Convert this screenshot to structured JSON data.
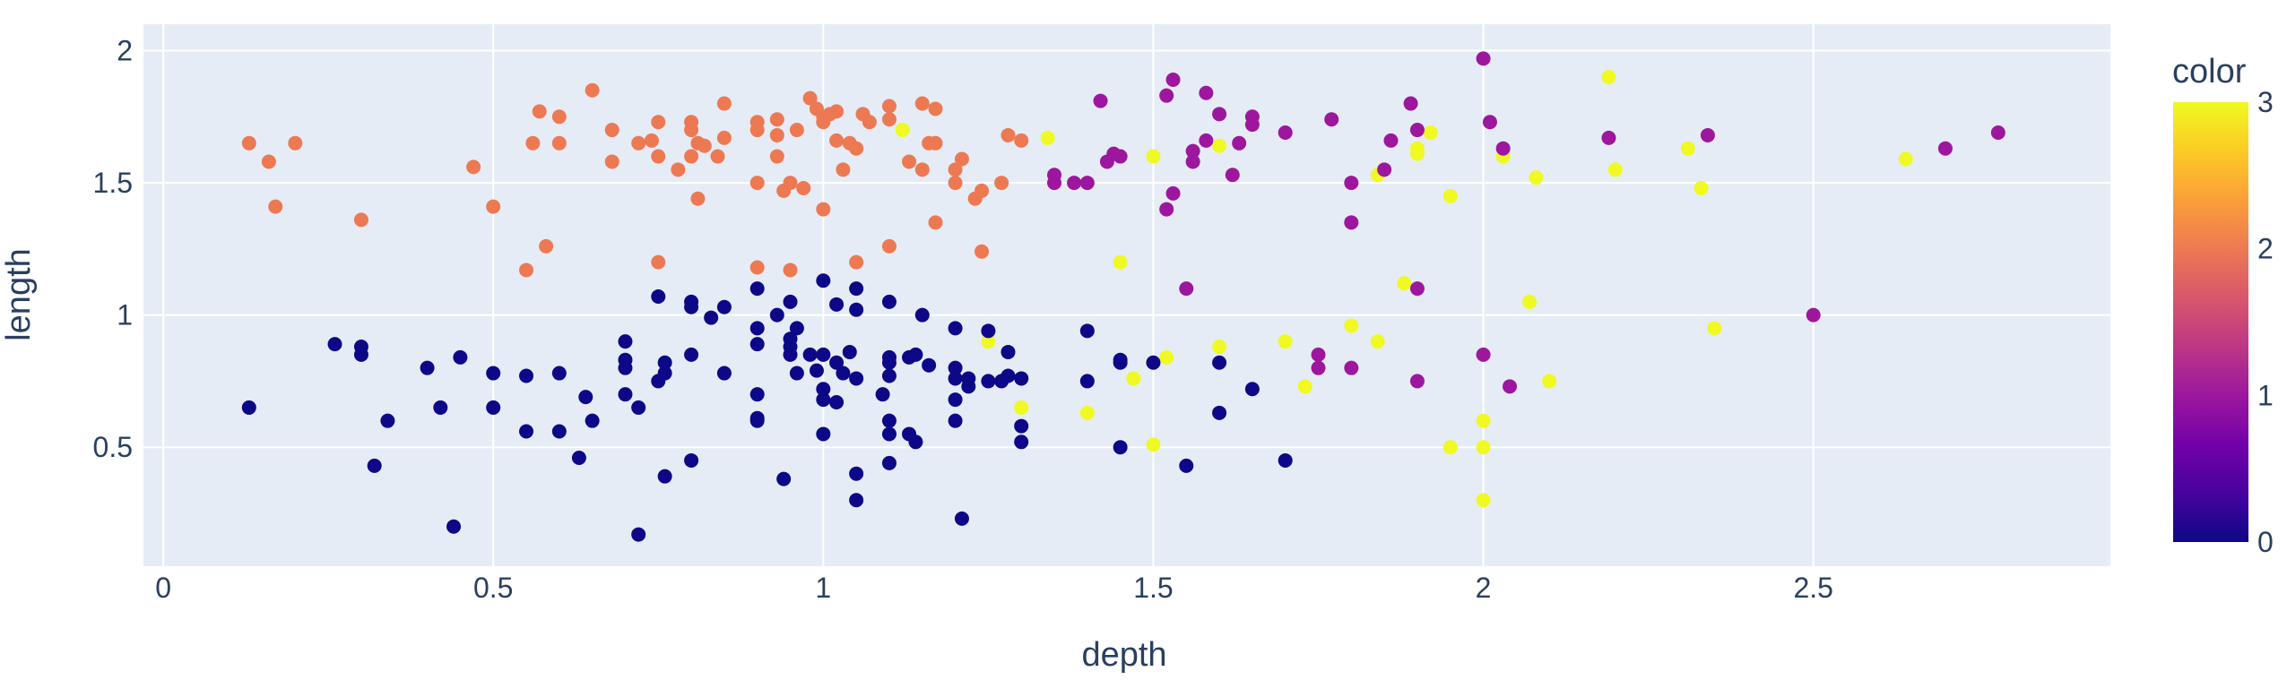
{
  "chart_data": {
    "type": "scatter",
    "xlabel": "depth",
    "ylabel": "length",
    "colorbar_title": "color",
    "xlim": [
      -0.03,
      2.95
    ],
    "ylim": [
      0.05,
      2.1
    ],
    "x_ticks": [
      0,
      0.5,
      1,
      1.5,
      2,
      2.5
    ],
    "x_tick_labels": [
      "0",
      "0.5",
      "1",
      "1.5",
      "2",
      "2.5"
    ],
    "y_ticks": [
      0.5,
      1,
      1.5,
      2
    ],
    "y_tick_labels": [
      "0.5",
      "1",
      "1.5",
      "2"
    ],
    "color_range": [
      0,
      3
    ],
    "colorbar_ticks": [
      0,
      1,
      2,
      3
    ],
    "colorbar_tick_labels": [
      "0",
      "1",
      "2",
      "3"
    ],
    "colorscale": [
      "#0d0887",
      "#46039f",
      "#7201a8",
      "#9c179e",
      "#bd3786",
      "#d8576b",
      "#ed7953",
      "#fb9f3a",
      "#fdca26",
      "#f0f921"
    ],
    "background": "#e5ecf6",
    "grid": true,
    "points": [
      [
        0.13,
        1.65,
        2
      ],
      [
        0.16,
        1.58,
        2
      ],
      [
        0.17,
        1.41,
        2
      ],
      [
        0.2,
        1.65,
        2
      ],
      [
        0.3,
        1.36,
        2
      ],
      [
        0.47,
        1.56,
        2
      ],
      [
        0.5,
        1.41,
        2
      ],
      [
        0.55,
        1.17,
        2
      ],
      [
        0.56,
        1.65,
        2
      ],
      [
        0.57,
        1.77,
        2
      ],
      [
        0.58,
        1.26,
        2
      ],
      [
        0.6,
        1.75,
        2
      ],
      [
        0.6,
        1.65,
        2
      ],
      [
        0.65,
        1.85,
        2
      ],
      [
        0.68,
        1.7,
        2
      ],
      [
        0.68,
        1.58,
        2
      ],
      [
        0.72,
        1.65,
        2
      ],
      [
        0.74,
        1.66,
        2
      ],
      [
        0.75,
        1.73,
        2
      ],
      [
        0.75,
        1.6,
        2
      ],
      [
        0.75,
        1.2,
        2
      ],
      [
        0.78,
        1.55,
        2
      ],
      [
        0.8,
        1.73,
        2
      ],
      [
        0.8,
        1.7,
        2
      ],
      [
        0.8,
        1.6,
        2
      ],
      [
        0.81,
        1.65,
        2
      ],
      [
        0.81,
        1.44,
        2
      ],
      [
        0.82,
        1.64,
        2
      ],
      [
        0.84,
        1.6,
        2
      ],
      [
        0.85,
        1.8,
        2
      ],
      [
        0.85,
        1.67,
        2
      ],
      [
        0.9,
        1.73,
        2
      ],
      [
        0.9,
        1.7,
        2
      ],
      [
        0.9,
        1.5,
        2
      ],
      [
        0.9,
        1.18,
        2
      ],
      [
        0.93,
        1.74,
        2
      ],
      [
        0.93,
        1.6,
        2
      ],
      [
        0.93,
        1.68,
        2
      ],
      [
        0.94,
        1.47,
        2
      ],
      [
        0.95,
        1.5,
        2
      ],
      [
        0.95,
        1.17,
        2
      ],
      [
        0.96,
        1.7,
        2
      ],
      [
        0.97,
        1.48,
        2
      ],
      [
        0.98,
        1.82,
        2
      ],
      [
        0.99,
        1.78,
        2
      ],
      [
        1.0,
        1.75,
        2
      ],
      [
        1.0,
        1.73,
        2
      ],
      [
        1.0,
        1.4,
        2
      ],
      [
        1.01,
        1.76,
        2
      ],
      [
        1.02,
        1.77,
        2
      ],
      [
        1.02,
        1.66,
        2
      ],
      [
        1.03,
        1.55,
        2
      ],
      [
        1.04,
        1.65,
        2
      ],
      [
        1.05,
        1.63,
        2
      ],
      [
        1.05,
        1.2,
        2
      ],
      [
        1.06,
        1.76,
        2
      ],
      [
        1.07,
        1.73,
        2
      ],
      [
        1.1,
        1.79,
        2
      ],
      [
        1.1,
        1.74,
        2
      ],
      [
        1.1,
        1.26,
        2
      ],
      [
        1.13,
        1.58,
        2
      ],
      [
        1.15,
        1.8,
        2
      ],
      [
        1.15,
        1.55,
        2
      ],
      [
        1.16,
        1.65,
        2
      ],
      [
        1.17,
        1.78,
        2
      ],
      [
        1.17,
        1.65,
        2
      ],
      [
        1.17,
        1.35,
        2
      ],
      [
        1.2,
        1.55,
        2
      ],
      [
        1.2,
        1.5,
        2
      ],
      [
        1.21,
        1.59,
        2
      ],
      [
        1.23,
        1.44,
        2
      ],
      [
        1.24,
        1.24,
        2
      ],
      [
        1.24,
        1.47,
        2
      ],
      [
        1.27,
        1.5,
        2
      ],
      [
        1.28,
        1.68,
        2
      ],
      [
        1.3,
        1.66,
        2
      ],
      [
        1.12,
        1.7,
        3
      ],
      [
        1.34,
        1.67,
        3
      ],
      [
        1.45,
        1.2,
        3
      ],
      [
        1.5,
        1.6,
        3
      ],
      [
        1.6,
        1.64,
        3
      ],
      [
        1.84,
        1.53,
        3
      ],
      [
        1.9,
        1.61,
        3
      ],
      [
        1.9,
        1.63,
        3
      ],
      [
        1.92,
        1.69,
        3
      ],
      [
        1.95,
        1.45,
        3
      ],
      [
        2.03,
        1.6,
        3
      ],
      [
        2.08,
        1.52,
        3
      ],
      [
        2.19,
        1.9,
        3
      ],
      [
        2.2,
        1.55,
        3
      ],
      [
        2.31,
        1.63,
        3
      ],
      [
        2.33,
        1.48,
        3
      ],
      [
        2.64,
        1.59,
        3
      ],
      [
        1.25,
        0.9,
        3
      ],
      [
        1.3,
        0.65,
        3
      ],
      [
        1.4,
        0.63,
        3
      ],
      [
        1.47,
        0.76,
        3
      ],
      [
        1.5,
        0.51,
        3
      ],
      [
        1.52,
        0.84,
        3
      ],
      [
        1.6,
        0.88,
        3
      ],
      [
        1.7,
        0.9,
        3
      ],
      [
        1.73,
        0.73,
        3
      ],
      [
        1.8,
        0.96,
        3
      ],
      [
        1.84,
        0.9,
        3
      ],
      [
        1.88,
        1.12,
        3
      ],
      [
        1.95,
        0.5,
        3
      ],
      [
        2.0,
        0.6,
        3
      ],
      [
        2.0,
        0.5,
        3
      ],
      [
        2.0,
        0.3,
        3
      ],
      [
        2.07,
        1.05,
        3
      ],
      [
        2.1,
        0.75,
        3
      ],
      [
        2.35,
        0.95,
        3
      ],
      [
        1.1,
        0.77,
        3
      ],
      [
        1.35,
        1.53,
        1
      ],
      [
        1.35,
        1.5,
        1
      ],
      [
        1.38,
        1.5,
        1
      ],
      [
        1.4,
        1.5,
        1
      ],
      [
        1.42,
        1.81,
        1
      ],
      [
        1.43,
        1.58,
        1
      ],
      [
        1.44,
        1.61,
        1
      ],
      [
        1.45,
        1.6,
        1
      ],
      [
        1.52,
        1.83,
        1
      ],
      [
        1.52,
        1.4,
        1
      ],
      [
        1.53,
        1.89,
        1
      ],
      [
        1.53,
        1.46,
        1
      ],
      [
        1.55,
        1.1,
        1
      ],
      [
        1.56,
        1.62,
        1
      ],
      [
        1.56,
        1.58,
        1
      ],
      [
        1.58,
        1.84,
        1
      ],
      [
        1.58,
        1.66,
        1
      ],
      [
        1.6,
        1.76,
        1
      ],
      [
        1.62,
        1.53,
        1
      ],
      [
        1.63,
        1.65,
        1
      ],
      [
        1.65,
        1.75,
        1
      ],
      [
        1.65,
        1.72,
        1
      ],
      [
        1.7,
        1.69,
        1
      ],
      [
        1.75,
        0.85,
        1
      ],
      [
        1.75,
        0.8,
        1
      ],
      [
        1.77,
        1.74,
        1
      ],
      [
        1.8,
        1.5,
        1
      ],
      [
        1.8,
        1.35,
        1
      ],
      [
        1.8,
        0.8,
        1
      ],
      [
        1.85,
        1.55,
        1
      ],
      [
        1.86,
        1.66,
        1
      ],
      [
        1.89,
        1.8,
        1
      ],
      [
        1.9,
        1.7,
        1
      ],
      [
        1.9,
        1.1,
        1
      ],
      [
        1.9,
        0.75,
        1
      ],
      [
        2.0,
        1.97,
        1
      ],
      [
        2.0,
        0.85,
        1
      ],
      [
        2.01,
        1.73,
        1
      ],
      [
        2.03,
        1.63,
        1
      ],
      [
        2.04,
        0.73,
        1
      ],
      [
        2.19,
        1.67,
        1
      ],
      [
        2.34,
        1.68,
        1
      ],
      [
        2.5,
        1.0,
        1
      ],
      [
        2.7,
        1.63,
        1
      ],
      [
        2.78,
        1.69,
        1
      ],
      [
        0.13,
        0.65,
        0
      ],
      [
        0.26,
        0.89,
        0
      ],
      [
        0.3,
        0.88,
        0
      ],
      [
        0.3,
        0.85,
        0
      ],
      [
        0.32,
        0.43,
        0
      ],
      [
        0.34,
        0.6,
        0
      ],
      [
        0.4,
        0.8,
        0
      ],
      [
        0.42,
        0.65,
        0
      ],
      [
        0.44,
        0.2,
        0
      ],
      [
        0.45,
        0.84,
        0
      ],
      [
        0.5,
        0.78,
        0
      ],
      [
        0.5,
        0.65,
        0
      ],
      [
        0.55,
        0.77,
        0
      ],
      [
        0.55,
        0.56,
        0
      ],
      [
        0.6,
        0.78,
        0
      ],
      [
        0.6,
        0.56,
        0
      ],
      [
        0.63,
        0.46,
        0
      ],
      [
        0.64,
        0.69,
        0
      ],
      [
        0.65,
        0.6,
        0
      ],
      [
        0.7,
        0.9,
        0
      ],
      [
        0.7,
        0.83,
        0
      ],
      [
        0.7,
        0.8,
        0
      ],
      [
        0.7,
        0.7,
        0
      ],
      [
        0.72,
        0.65,
        0
      ],
      [
        0.72,
        0.17,
        0
      ],
      [
        0.75,
        1.07,
        0
      ],
      [
        0.75,
        0.75,
        0
      ],
      [
        0.76,
        0.82,
        0
      ],
      [
        0.76,
        0.78,
        0
      ],
      [
        0.76,
        0.39,
        0
      ],
      [
        0.8,
        1.05,
        0
      ],
      [
        0.8,
        1.03,
        0
      ],
      [
        0.8,
        0.85,
        0
      ],
      [
        0.8,
        0.45,
        0
      ],
      [
        0.83,
        0.99,
        0
      ],
      [
        0.85,
        1.03,
        0
      ],
      [
        0.85,
        0.78,
        0
      ],
      [
        0.9,
        1.1,
        0
      ],
      [
        0.9,
        0.95,
        0
      ],
      [
        0.9,
        0.89,
        0
      ],
      [
        0.9,
        0.7,
        0
      ],
      [
        0.9,
        0.61,
        0
      ],
      [
        0.9,
        0.6,
        0
      ],
      [
        0.93,
        1.0,
        0
      ],
      [
        0.94,
        0.38,
        0
      ],
      [
        0.95,
        1.05,
        0
      ],
      [
        0.95,
        0.91,
        0
      ],
      [
        0.95,
        0.88,
        0
      ],
      [
        0.95,
        0.85,
        0
      ],
      [
        0.96,
        0.95,
        0
      ],
      [
        0.96,
        0.78,
        0
      ],
      [
        0.98,
        0.85,
        0
      ],
      [
        0.99,
        0.79,
        0
      ],
      [
        1.0,
        1.13,
        0
      ],
      [
        1.0,
        0.85,
        0
      ],
      [
        1.0,
        0.72,
        0
      ],
      [
        1.0,
        0.68,
        0
      ],
      [
        1.0,
        0.55,
        0
      ],
      [
        1.02,
        1.04,
        0
      ],
      [
        1.02,
        0.82,
        0
      ],
      [
        1.02,
        0.67,
        0
      ],
      [
        1.03,
        0.78,
        0
      ],
      [
        1.04,
        0.86,
        0
      ],
      [
        1.05,
        1.1,
        0
      ],
      [
        1.05,
        1.02,
        0
      ],
      [
        1.05,
        0.76,
        0
      ],
      [
        1.05,
        0.4,
        0
      ],
      [
        1.05,
        0.3,
        0
      ],
      [
        1.09,
        0.7,
        0
      ],
      [
        1.1,
        1.05,
        0
      ],
      [
        1.1,
        0.84,
        0
      ],
      [
        1.1,
        0.82,
        0
      ],
      [
        1.1,
        0.77,
        0
      ],
      [
        1.1,
        0.6,
        0
      ],
      [
        1.1,
        0.55,
        0
      ],
      [
        1.1,
        0.44,
        0
      ],
      [
        1.13,
        0.84,
        0
      ],
      [
        1.13,
        0.55,
        0
      ],
      [
        1.14,
        0.85,
        0
      ],
      [
        1.14,
        0.52,
        0
      ],
      [
        1.15,
        1.0,
        0
      ],
      [
        1.16,
        0.81,
        0
      ],
      [
        1.2,
        0.95,
        0
      ],
      [
        1.2,
        0.8,
        0
      ],
      [
        1.2,
        0.76,
        0
      ],
      [
        1.2,
        0.68,
        0
      ],
      [
        1.2,
        0.6,
        0
      ],
      [
        1.21,
        0.23,
        0
      ],
      [
        1.22,
        0.76,
        0
      ],
      [
        1.22,
        0.73,
        0
      ],
      [
        1.25,
        0.94,
        0
      ],
      [
        1.25,
        0.75,
        0
      ],
      [
        1.27,
        0.75,
        0
      ],
      [
        1.28,
        0.86,
        0
      ],
      [
        1.28,
        0.77,
        0
      ],
      [
        1.3,
        0.76,
        0
      ],
      [
        1.3,
        0.58,
        0
      ],
      [
        1.3,
        0.52,
        0
      ],
      [
        1.4,
        0.94,
        0
      ],
      [
        1.4,
        0.75,
        0
      ],
      [
        1.45,
        0.83,
        0
      ],
      [
        1.45,
        0.82,
        0
      ],
      [
        1.45,
        0.5,
        0
      ],
      [
        1.5,
        0.82,
        0
      ],
      [
        1.55,
        0.43,
        0
      ],
      [
        1.6,
        0.82,
        0
      ],
      [
        1.6,
        0.63,
        0
      ],
      [
        1.65,
        0.72,
        0
      ],
      [
        1.7,
        0.45,
        0
      ]
    ]
  }
}
